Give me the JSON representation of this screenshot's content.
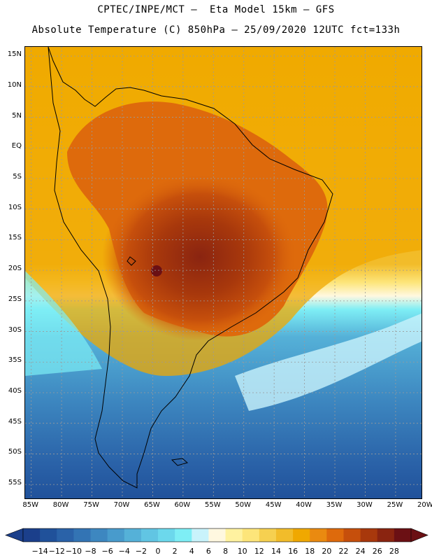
{
  "header": {
    "line1": "CPTEC/INPE/MCT –  Eta Model 15km – GFS",
    "line2": "Absolute Temperature (C) 850hPa – 25/09/2020 12UTC fct=133h"
  },
  "map": {
    "lat_labels": [
      "15N",
      "10N",
      "5N",
      "EQ",
      "5S",
      "10S",
      "15S",
      "20S",
      "25S",
      "30S",
      "35S",
      "40S",
      "45S",
      "50S",
      "55S"
    ],
    "lon_labels": [
      "85W",
      "80W",
      "75W",
      "70W",
      "65W",
      "60W",
      "55W",
      "50W",
      "45W",
      "40W",
      "35W",
      "30W",
      "25W",
      "20W"
    ],
    "lat_values": [
      15,
      10,
      5,
      0,
      -5,
      -10,
      -15,
      -20,
      -25,
      -30,
      -35,
      -40,
      -45,
      -50,
      -55
    ],
    "lon_values": [
      -85,
      -80,
      -75,
      -70,
      -65,
      -60,
      -55,
      -50,
      -45,
      -40,
      -35,
      -30,
      -25,
      -20
    ],
    "lat_range": [
      -57.5,
      16.5
    ],
    "lon_range": [
      -86,
      -20.5
    ],
    "ocean_color": "#f0b000",
    "gridline_color": "#9a9a9a",
    "coastline_color": "#000000"
  },
  "colorbar": {
    "labels": [
      "-14",
      "-12",
      "-10",
      "-8",
      "-6",
      "-4",
      "-2",
      "0",
      "2",
      "4",
      "6",
      "8",
      "10",
      "12",
      "14",
      "16",
      "18",
      "20",
      "22",
      "24",
      "26",
      "28"
    ],
    "colors": [
      "#1b3f8b",
      "#20519a",
      "#2a62a8",
      "#3374b4",
      "#3d87c0",
      "#489bcc",
      "#55b1d8",
      "#61c5e3",
      "#6cd8ec",
      "#7eeef5",
      "#c9f3fb",
      "#fff8e0",
      "#fff2a0",
      "#fde57a",
      "#f6d050",
      "#f2bc2a",
      "#f0a800",
      "#ea8a10",
      "#de6a0c",
      "#c64f0c",
      "#a8380c",
      "#8a2410",
      "#6b1014"
    ],
    "low_arrow_color": "#1b3f8b",
    "high_arrow_color": "#6b1014"
  }
}
